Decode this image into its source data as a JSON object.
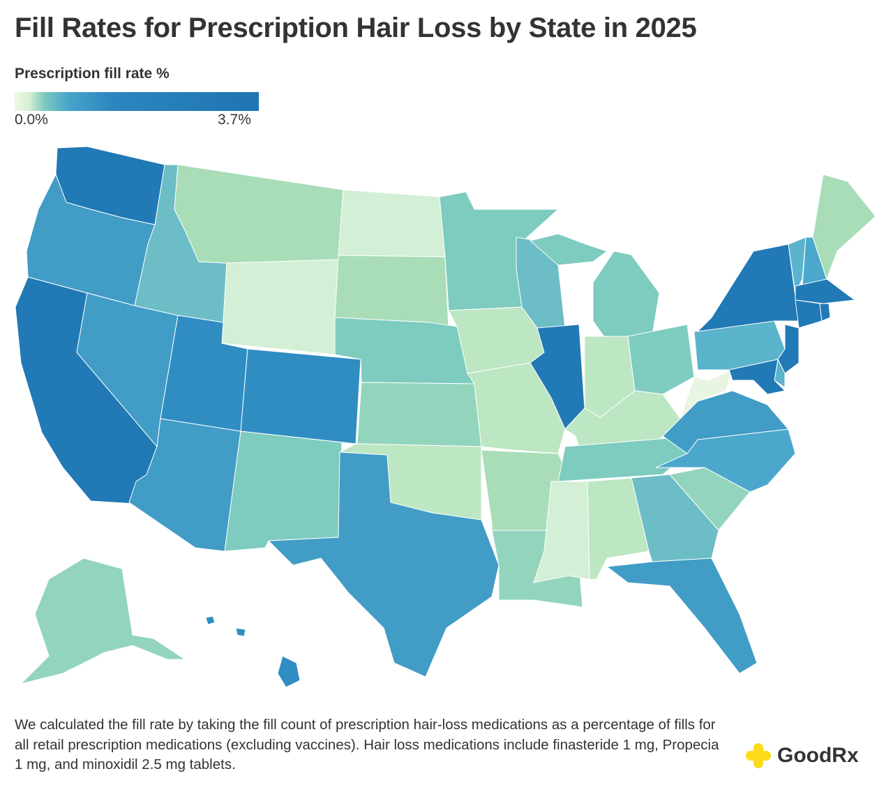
{
  "title": "Fill Rates for Prescription Hair Loss by State in 2025",
  "legend": {
    "title": "Prescription fill rate %",
    "min": "0.0%",
    "max": "3.7%",
    "low_color": "#eef7e6",
    "high_color": "#1f74b2"
  },
  "states": {
    "WA": "#2179b5",
    "OR": "#419cc6",
    "CA": "#2179b5",
    "NV": "#419cc6",
    "ID": "#6cbdc6",
    "MT": "#a8ddb8",
    "WY": "#d3efd5",
    "UT": "#2f8dc2",
    "CO": "#2f8dc2",
    "AZ": "#419cc6",
    "NM": "#7ecbc0",
    "ND": "#d3efd5",
    "SD": "#a8ddb8",
    "NE": "#7ecbc0",
    "KS": "#93d5bc",
    "OK": "#bde6c2",
    "TX": "#419cc6",
    "MN": "#7ecbc0",
    "IA": "#bde6c2",
    "MO": "#bde6c2",
    "AR": "#a8ddb8",
    "LA": "#93d5bc",
    "WI": "#6cbdc6",
    "IL": "#2179b5",
    "MI": "#7ecbc0",
    "IN": "#bde6c2",
    "OH": "#7ecbc0",
    "KY": "#bde6c2",
    "TN": "#7ecbc0",
    "MS": "#d3efd5",
    "AL": "#bde6c2",
    "GA": "#6cbdc6",
    "FL": "#419cc6",
    "SC": "#93d5bc",
    "NC": "#4ba8cc",
    "VA": "#419cc6",
    "WV": "#e8f5e2",
    "PA": "#5ab4cc",
    "NY": "#2179b5",
    "VT": "#5ab4cc",
    "NH": "#4ba8cc",
    "ME": "#a8ddb8",
    "MA": "#2179b5",
    "CT": "#2179b5",
    "RI": "#2179b5",
    "NJ": "#2179b5",
    "DE": "#5ab4cc",
    "MD": "#2179b5",
    "AK": "#93d5bc",
    "HI": "#2f8dc2"
  },
  "footnote": "We calculated the fill rate by taking the fill count of prescription hair-loss medications as a percentage of fills for all retail prescription medications (excluding vaccines). Hair loss medications include finasteride 1 mg, Propecia 1 mg, and minoxidil 2.5 mg tablets.",
  "brand": {
    "name": "GoodRx",
    "color": "#fddb1a"
  }
}
